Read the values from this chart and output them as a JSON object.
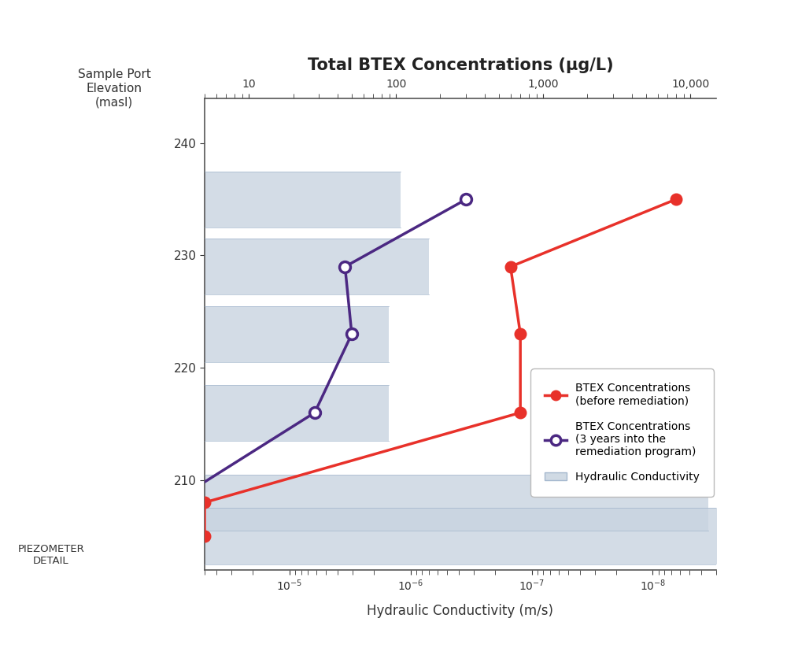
{
  "title": "Total BTEX Concentrations (μg/L)",
  "xlabel_bottom": "Hydraulic Conductivity (m/s)",
  "bg_color": "#ffffff",
  "elevations": [
    205,
    208,
    216,
    223,
    229,
    235
  ],
  "btex_before": [
    5,
    5,
    700,
    700,
    600,
    8000
  ],
  "btex_after": [
    3,
    3,
    28,
    50,
    45,
    300
  ],
  "bar_data": [
    [
      235,
      2.5,
      5e-05,
      1.2e-06
    ],
    [
      229,
      2.5,
      5e-05,
      7e-07
    ],
    [
      223,
      2.5,
      5e-05,
      1.5e-06
    ],
    [
      216,
      2.5,
      5e-05,
      1.5e-06
    ],
    [
      208,
      2.5,
      5e-05,
      3.5e-09
    ],
    [
      205,
      2.5,
      5e-05,
      2.5e-09
    ]
  ],
  "btex_xlim": [
    5,
    15000
  ],
  "hc_xlim": [
    5e-05,
    3e-09
  ],
  "ylim": [
    202,
    244
  ],
  "yticks": [
    210,
    220,
    230,
    240
  ],
  "hc_xticks": [
    1e-05,
    1e-06,
    1e-07,
    1e-08
  ],
  "btex_xticks": [
    10,
    100,
    1000,
    10000
  ],
  "red_color": "#e8312a",
  "purple_color": "#4b2882",
  "bar_color": "#c8d4e0",
  "bar_edge_color": "#9aafc8"
}
